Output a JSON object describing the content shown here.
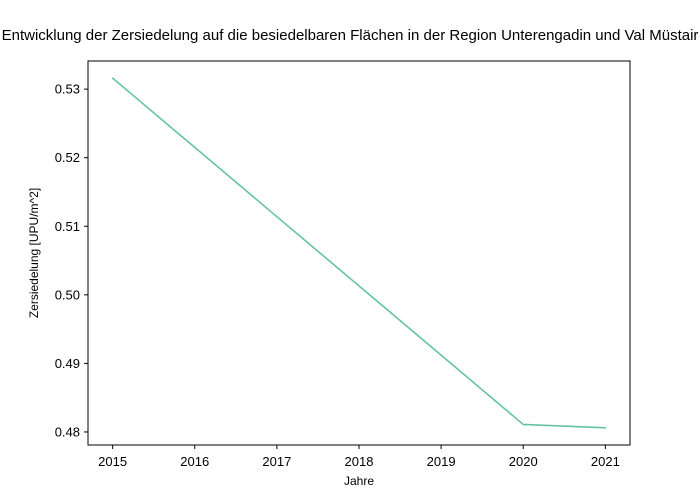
{
  "chart_data": {
    "type": "line",
    "title": "Entwicklung der Zersiedelung auf die besiedelbaren Flächen in der Region Unterengadin und Val Müstair",
    "xlabel": "Jahre",
    "ylabel": "Zersiedelung [UPU/m^2]",
    "x": [
      2015,
      2020,
      2021
    ],
    "series": [
      {
        "values": [
          0.5316,
          0.4811,
          0.4806
        ],
        "color": "#66c2a5"
      }
    ],
    "xlim": [
      2014.7,
      2021.3
    ],
    "ylim": [
      0.4781,
      0.5341
    ],
    "xticks": [
      "2015",
      "2016",
      "2017",
      "2018",
      "2019",
      "2020",
      "2021"
    ],
    "yticks": [
      "0.48",
      "0.49",
      "0.50",
      "0.51",
      "0.52",
      "0.53"
    ],
    "grid": false
  }
}
